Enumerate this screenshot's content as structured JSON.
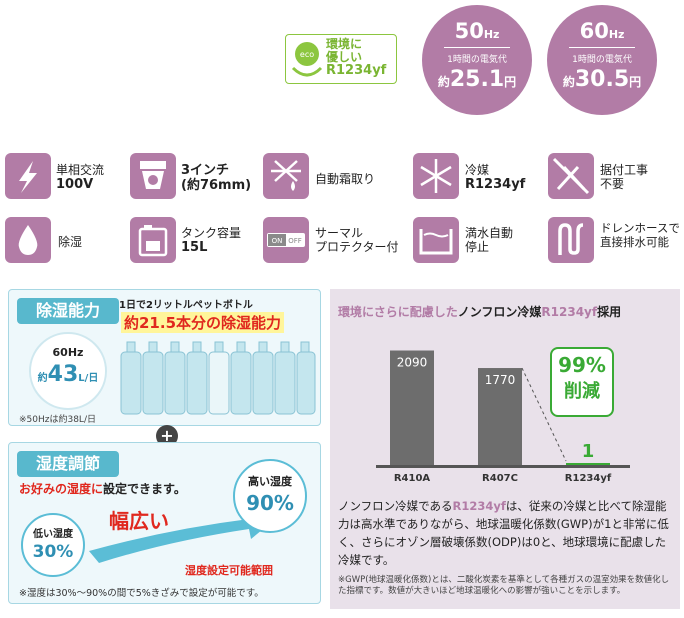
{
  "eco_badge": {
    "line1": "環境に",
    "line2": "優しい",
    "code": "R1234yf"
  },
  "hz50": {
    "freq": "50",
    "unit": "Hz",
    "caption": "1時間の電気代",
    "prefix": "約",
    "value": "25.1",
    "yen": "円"
  },
  "hz60": {
    "freq": "60",
    "unit": "Hz",
    "caption": "1時間の電気代",
    "prefix": "約",
    "value": "30.5",
    "yen": "円"
  },
  "features": [
    {
      "icon": "lightning-icon",
      "line1": "単相交流",
      "line2": "100V"
    },
    {
      "icon": "hose-inch-icon",
      "line1": "3インチ",
      "line2": "(約76mm)"
    },
    {
      "icon": "defrost-icon",
      "line1": "自動霜取り",
      "line2": ""
    },
    {
      "icon": "snowflake-icon",
      "line1": "冷媒",
      "line2": "R1234yf"
    },
    {
      "icon": "no-tools-icon",
      "line1": "据付工事",
      "line2": "不要"
    },
    {
      "icon": "water-drop-icon",
      "line1": "除湿",
      "line2": ""
    },
    {
      "icon": "tank-icon",
      "line1": "タンク容量",
      "line2": "15L"
    },
    {
      "icon": "on-off-switch-icon",
      "line1": "サーマル",
      "line2": "プロテクター付"
    },
    {
      "icon": "full-tank-stop-icon",
      "line1": "満水自動",
      "line2": "停止"
    },
    {
      "icon": "drain-hose-icon",
      "line1": "ドレンホースで",
      "line2": "直接排水可能"
    }
  ],
  "switch_labels": {
    "on": "ON",
    "off": "OFF"
  },
  "dehumid": {
    "title": "除湿能力",
    "hz_label": "60Hz",
    "prefix": "約",
    "value": "43",
    "unit": "L/日",
    "note": "※50Hzは約38L/日",
    "caption": "1日で2リットルペットボトル",
    "highlight": "約21.5本分の除湿能力"
  },
  "plus": "+",
  "humidity": {
    "title": "湿度調節",
    "subtitle_red": "お好みの湿度に",
    "subtitle_rest": "設定できます。",
    "high_label": "高い湿度",
    "high_value": "90%",
    "low_label": "低い湿度",
    "low_value": "30%",
    "wide": "幅広い",
    "range_label": "湿度設定可能範囲",
    "note": "※湿度は30%〜90%の間で5%きざみで設定が可能です。"
  },
  "refrigerant": {
    "title_pre": "環境にさらに配慮した",
    "title_mid": "ノンフロン冷媒",
    "title_code": "R1234yf",
    "title_post": "採用",
    "badge_pct": "99%",
    "badge_word": "削減",
    "body_pre": "ノンフロン冷媒である",
    "body_code": "R1234yf",
    "body_rest": "は、従来の冷媒と比べて除湿能力は高水準でありながら、地球温暖化係数(GWP)が1と非常に低く、さらにオゾン層破壊係数(ODP)は0と、地球環境に配慮した冷媒です。",
    "footnote": "※GWP(地球温暖化係数)とは、二酸化炭素を基準として各種ガスの温室効果を数値化した指標です。数値が大きいほど地球温暖化への影響が強いことを示します。"
  },
  "chart_data": {
    "type": "bar",
    "categories": [
      "R410A",
      "R407C",
      "R1234yf"
    ],
    "values": [
      2090,
      1770,
      1
    ],
    "data_labels": [
      "2090",
      "1770",
      "1"
    ],
    "ylim": [
      0,
      2300
    ],
    "colors": [
      "#6d6d6d",
      "#6d6d6d",
      "#3aaa35"
    ],
    "grid": false
  },
  "colors": {
    "accent": "#b27ca6",
    "blue": "#58b8cd",
    "green": "#3aaa35",
    "red": "#e0281e"
  }
}
